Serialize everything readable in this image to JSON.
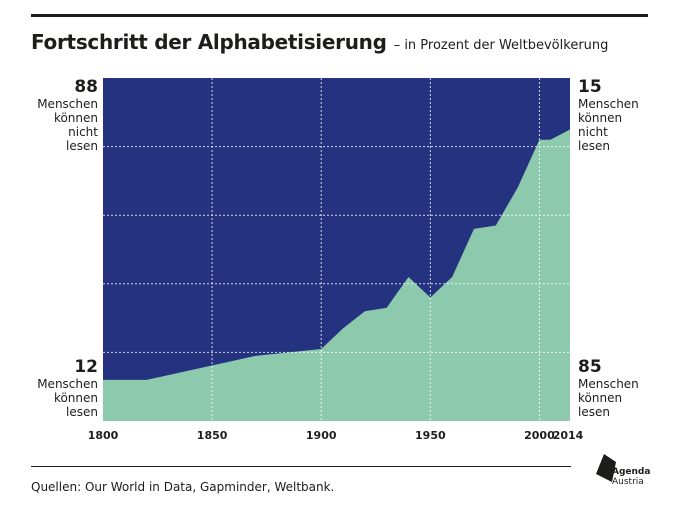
{
  "header": {
    "title": "Fortschritt der Alphabetisierung",
    "subtitle": "– in Prozent der Weltbevölkerung"
  },
  "labels": {
    "left_top_value": "88",
    "left_top_text": [
      "Menschen",
      "können",
      "nicht",
      "lesen"
    ],
    "left_bottom_value": "12",
    "left_bottom_text": [
      "Menschen",
      "können",
      "lesen"
    ],
    "right_top_value": "15",
    "right_top_text": [
      "Menschen",
      "können",
      "nicht",
      "lesen"
    ],
    "right_bottom_value": "85",
    "right_bottom_text": [
      "Menschen",
      "können",
      "lesen"
    ]
  },
  "footer": {
    "source": "Quellen: Our World in Data, Gapminder, Weltbank.",
    "logo_line1": "Agenda",
    "logo_line2": "Austria"
  },
  "colors": {
    "illiterate": "#25327f",
    "literate": "#8dcaad",
    "gridline": "#ffffff"
  },
  "chart_data": {
    "type": "area",
    "title": "Fortschritt der Alphabetisierung",
    "subtitle": "– in Prozent der Weltbevölkerung",
    "x_ticks": [
      1800,
      1850,
      1900,
      1950,
      2000,
      2014
    ],
    "xlim": [
      1800,
      2014
    ],
    "ylim": [
      0,
      100
    ],
    "stacked": true,
    "x": [
      1800,
      1820,
      1870,
      1900,
      1910,
      1920,
      1930,
      1940,
      1950,
      1960,
      1970,
      1980,
      1990,
      2000,
      2005,
      2014
    ],
    "series": [
      {
        "name": "können lesen",
        "values": [
          12,
          12,
          19,
          21,
          27,
          32,
          33,
          42,
          36,
          42,
          56,
          57,
          68,
          82,
          82,
          85
        ]
      },
      {
        "name": "können nicht lesen",
        "values": [
          88,
          88,
          81,
          79,
          73,
          68,
          67,
          58,
          64,
          58,
          44,
          43,
          32,
          18,
          18,
          15
        ]
      }
    ]
  }
}
